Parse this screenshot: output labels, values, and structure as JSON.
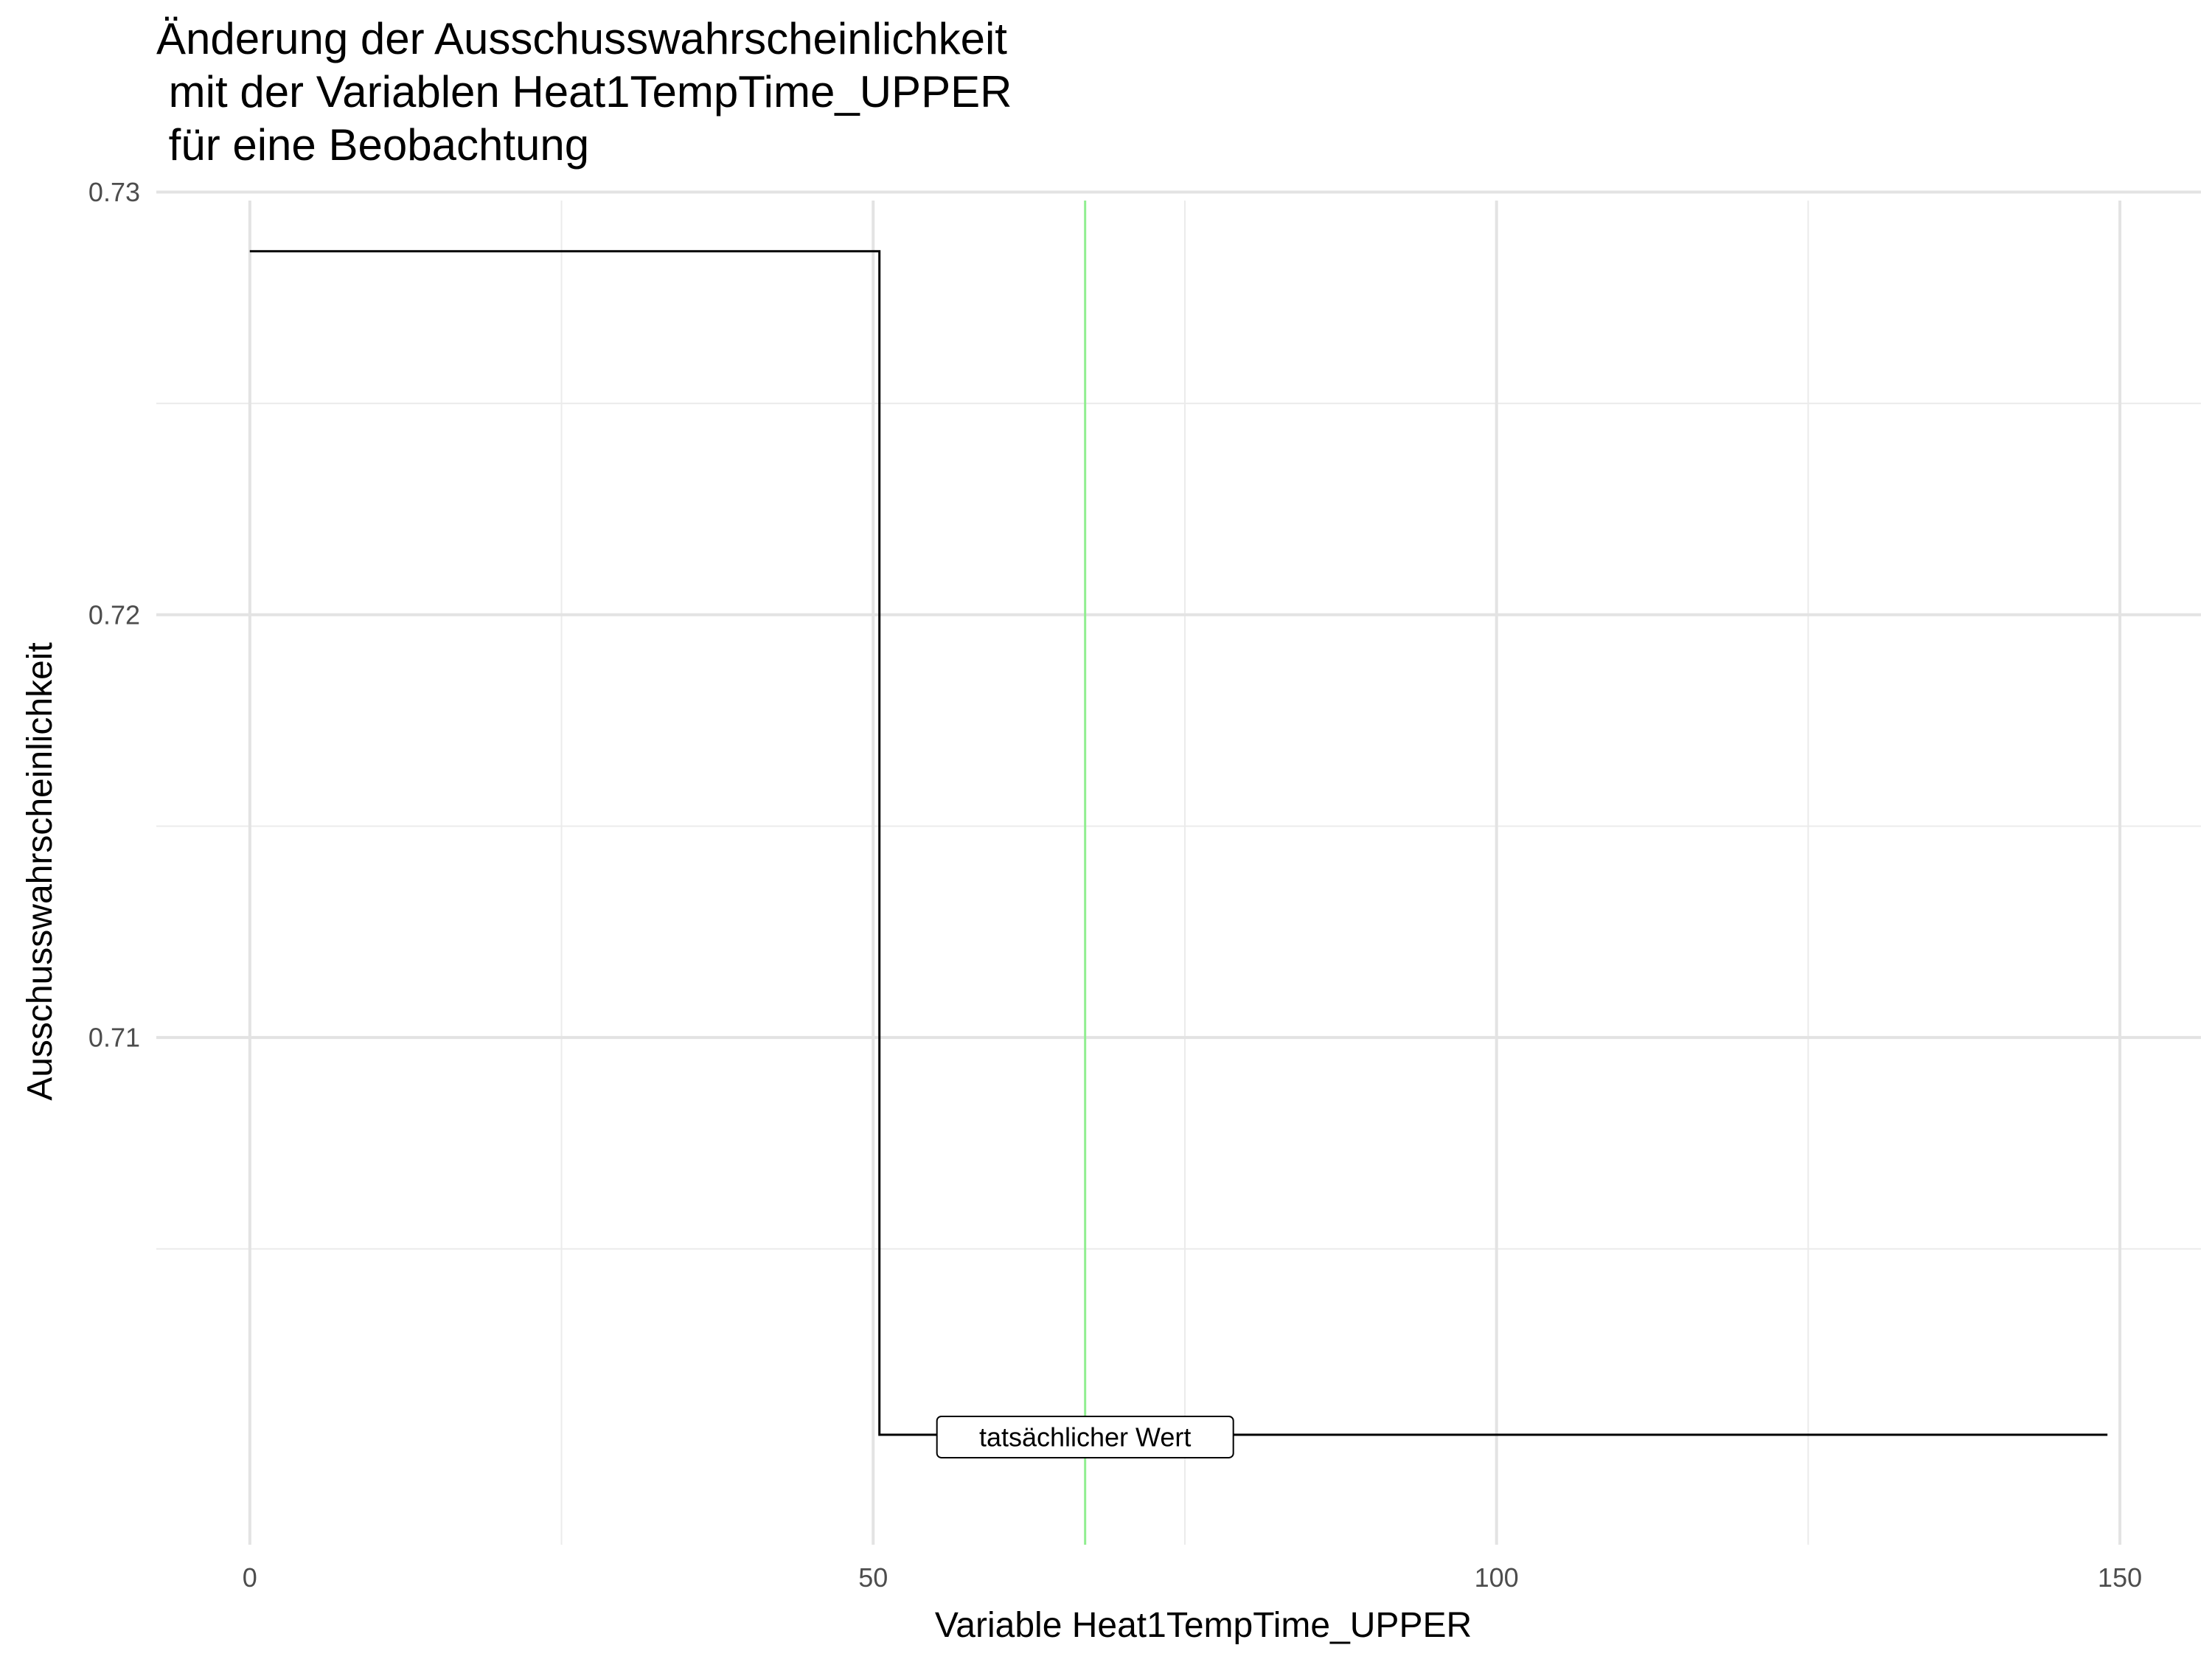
{
  "chart_data": {
    "type": "line",
    "step": true,
    "title": [
      "Änderung der Ausschusswahrscheinlichkeit",
      " mit der Variablen Heat1TempTime_UPPER",
      " für eine Beobachtung"
    ],
    "xlabel": "Variable Heat1TempTime_UPPER",
    "ylabel": "Ausschusswahrscheinlichkeit",
    "xlim": [
      -7.5,
      156.5
    ],
    "ylim": [
      0.698,
      0.7298
    ],
    "x_ticks": [
      0,
      50,
      100,
      150
    ],
    "x_tick_labels": [
      "0",
      "50",
      "100",
      "150"
    ],
    "y_ticks": [
      0.71,
      0.72,
      0.73
    ],
    "y_tick_labels": [
      "0.71",
      "0.72",
      "0.73"
    ],
    "grid": true,
    "series": [
      {
        "color": "#000000",
        "x": [
          0,
          50.5,
          50.5,
          149
        ],
        "y": [
          0.7286,
          0.7286,
          0.7006,
          0.7006
        ]
      }
    ],
    "vline": {
      "x": 67,
      "color": "#90ee90"
    },
    "annotation": {
      "text": "tatsächlicher Wert",
      "x": 67,
      "y": 0.7006
    }
  }
}
